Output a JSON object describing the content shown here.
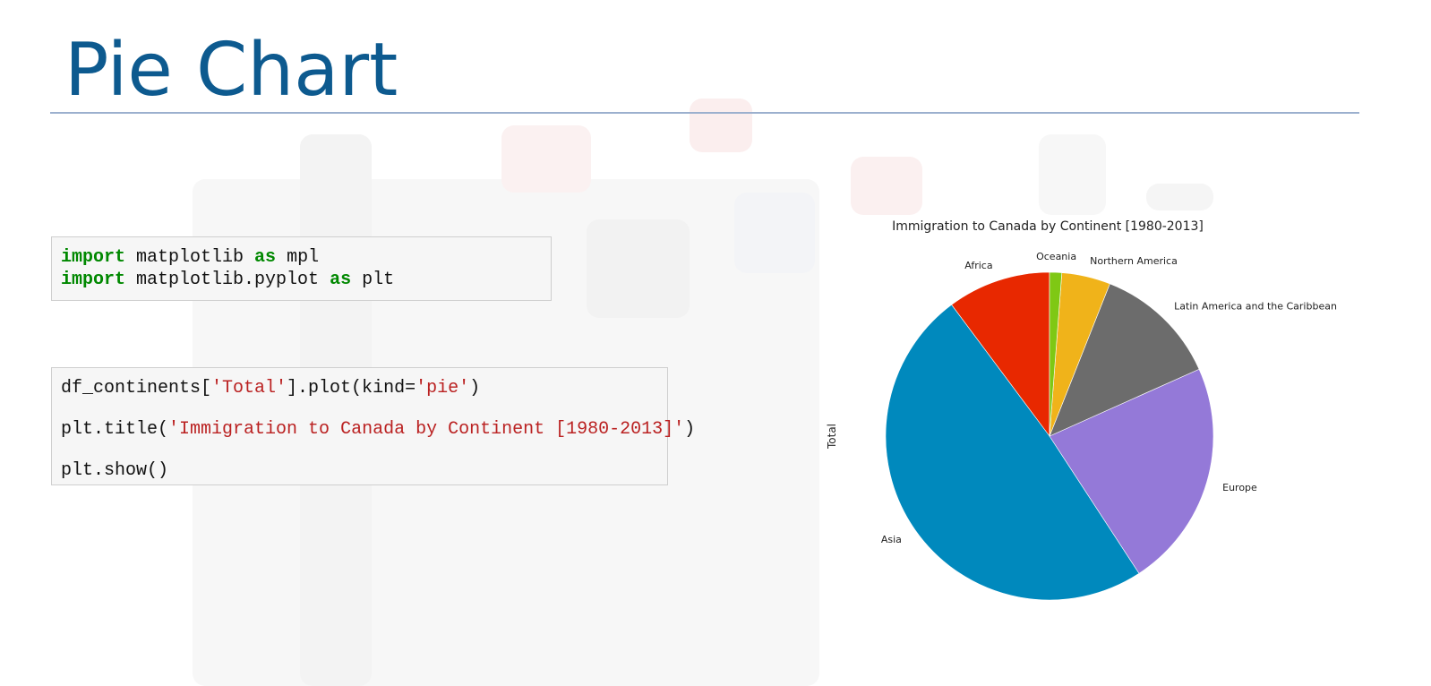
{
  "slide": {
    "title": "Pie Chart"
  },
  "code_cells": [
    {
      "lines": [
        [
          {
            "t": "import",
            "k": "kw"
          },
          {
            "t": " matplotlib "
          },
          {
            "t": "as",
            "k": "kw"
          },
          {
            "t": " mpl"
          }
        ],
        [
          {
            "t": "import",
            "k": "kw"
          },
          {
            "t": " matplotlib.pyplot "
          },
          {
            "t": "as",
            "k": "kw"
          },
          {
            "t": " plt"
          }
        ]
      ]
    },
    {
      "lines": [
        [
          {
            "t": "df_continents["
          },
          {
            "t": "'Total'",
            "k": "str"
          },
          {
            "t": "].plot(kind="
          },
          {
            "t": "'pie'",
            "k": "str"
          },
          {
            "t": ")"
          }
        ],
        [
          {
            "t": "plt.title("
          },
          {
            "t": "'Immigration to Canada by Continent [1980-2013]'",
            "k": "str"
          },
          {
            "t": ")"
          }
        ],
        [
          {
            "t": "plt.show()"
          }
        ]
      ]
    }
  ],
  "colors": {
    "title": "#0d5a8f",
    "keyword": "#008800",
    "string": "#ba2121"
  },
  "chart_data": {
    "type": "pie",
    "title": "Immigration to Canada by Continent [1980-2013]",
    "ylabel": "Total",
    "start_angle_deg": 90,
    "direction": "counterclockwise",
    "legend": "none",
    "categories": [
      "Africa",
      "Asia",
      "Europe",
      "Latin America and the Caribbean",
      "Northern America",
      "Oceania"
    ],
    "values": [
      10.2,
      49.0,
      22.5,
      12.3,
      4.8,
      1.2
    ],
    "colors": [
      "#e82800",
      "#0089bd",
      "#9479d8",
      "#6c6c6c",
      "#f0b31a",
      "#7fc814"
    ]
  }
}
